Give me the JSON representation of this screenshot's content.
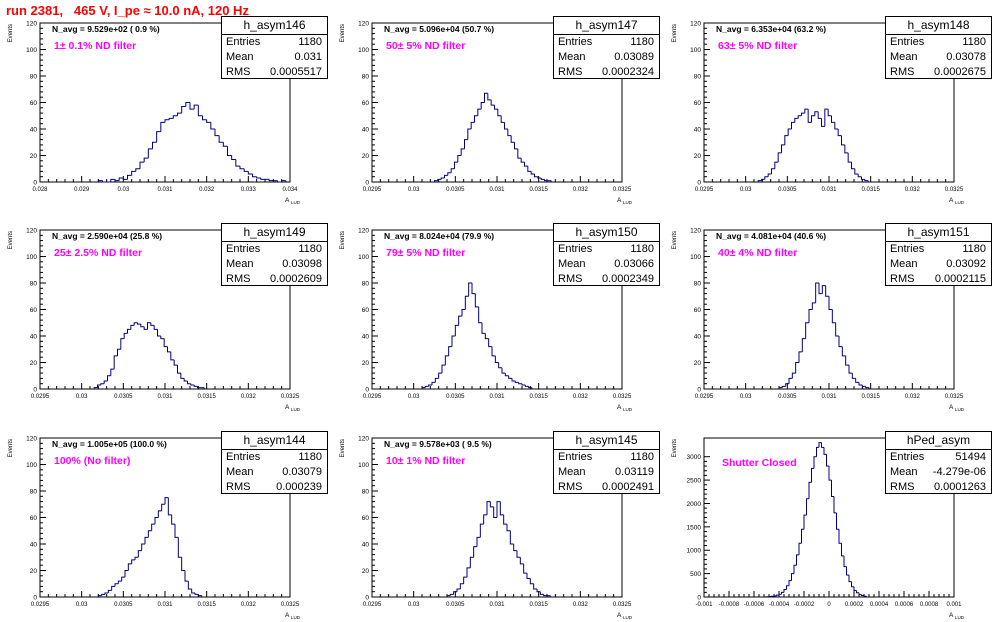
{
  "header": {
    "title": "run 2381,   465 V, I_pe ≈ 10.0 nA, 120 Hz"
  },
  "common": {
    "ylabel": "Events",
    "xlabel": "A",
    "xlabel_sub": "LUD",
    "stats_labels": {
      "entries": "Entries",
      "mean": "Mean",
      "rms": "RMS"
    },
    "hist_color": "#000080",
    "note_color": "#ff00ff"
  },
  "chart_data": [
    {
      "type": "bar",
      "title": "h_asym146",
      "annotation": "N_avg = 9.529e+02 ( 0.9 %)",
      "filter_note": "1± 0.1% ND filter",
      "stats": {
        "entries": "1180",
        "mean": "0.031",
        "rms": "0.0005517"
      },
      "xlim": [
        0.028,
        0.034
      ],
      "ylim": [
        0,
        120
      ],
      "xticks": [
        0.028,
        0.029,
        0.03,
        0.031,
        0.032,
        0.033,
        0.034
      ],
      "xtick_labels": [
        "0.028",
        "0.029",
        "0.03",
        "0.031",
        "0.032",
        "0.033",
        "0.034"
      ],
      "yticks": [
        0,
        20,
        40,
        60,
        80,
        100,
        120
      ],
      "ytick_labels": [
        "0",
        "20",
        "40",
        "60",
        "80",
        "100",
        "120"
      ],
      "bins": {
        "start": 0.0294,
        "width": 0.0001,
        "counts": [
          1,
          0,
          0,
          2,
          1,
          3,
          2,
          5,
          8,
          10,
          15,
          18,
          25,
          30,
          38,
          45,
          47,
          48,
          50,
          52,
          57,
          60,
          55,
          58,
          50,
          47,
          45,
          40,
          35,
          30,
          27,
          20,
          17,
          12,
          10,
          8,
          6,
          4,
          3,
          2,
          2,
          1,
          1,
          0,
          1
        ]
      }
    },
    {
      "type": "bar",
      "title": "h_asym147",
      "annotation": "N_avg = 5.096e+04 (50.7 %)",
      "filter_note": "50± 5% ND filter",
      "stats": {
        "entries": "1180",
        "mean": "0.03089",
        "rms": "0.0002324"
      },
      "xlim": [
        0.0295,
        0.0325
      ],
      "ylim": [
        0,
        120
      ],
      "xticks": [
        0.0295,
        0.03,
        0.0305,
        0.031,
        0.0315,
        0.032,
        0.0325
      ],
      "xtick_labels": [
        "0.0295",
        "0.03",
        "0.0305",
        "0.031",
        "0.0315",
        "0.032",
        "0.0325"
      ],
      "yticks": [
        0,
        20,
        40,
        60,
        80,
        100,
        120
      ],
      "ytick_labels": [
        "0",
        "20",
        "40",
        "60",
        "80",
        "100",
        "120"
      ],
      "bins": {
        "start": 0.03025,
        "width": 4e-05,
        "counts": [
          1,
          2,
          3,
          5,
          7,
          10,
          15,
          20,
          25,
          32,
          40,
          45,
          50,
          55,
          60,
          67,
          62,
          58,
          55,
          50,
          45,
          40,
          35,
          30,
          25,
          18,
          15,
          12,
          8,
          6,
          4,
          3,
          2,
          1,
          1
        ]
      }
    },
    {
      "type": "bar",
      "title": "h_asym148",
      "annotation": "N_avg = 6.353e+04 (63.2 %)",
      "filter_note": "63± 5% ND filter",
      "stats": {
        "entries": "1180",
        "mean": "0.03078",
        "rms": "0.0002675"
      },
      "xlim": [
        0.0295,
        0.0325
      ],
      "ylim": [
        0,
        120
      ],
      "xticks": [
        0.0295,
        0.03,
        0.0305,
        0.031,
        0.0315,
        0.032,
        0.0325
      ],
      "xtick_labels": [
        "0.0295",
        "0.03",
        "0.0305",
        "0.031",
        "0.0315",
        "0.032",
        "0.0325"
      ],
      "yticks": [
        0,
        20,
        40,
        60,
        80,
        100,
        120
      ],
      "ytick_labels": [
        "0",
        "20",
        "40",
        "60",
        "80",
        "100",
        "120"
      ],
      "bins": {
        "start": 0.03015,
        "width": 4e-05,
        "counts": [
          1,
          2,
          4,
          6,
          10,
          15,
          22,
          28,
          35,
          40,
          45,
          48,
          50,
          52,
          55,
          45,
          50,
          53,
          48,
          42,
          55,
          50,
          45,
          40,
          35,
          28,
          22,
          15,
          10,
          6,
          4,
          2,
          1
        ]
      }
    },
    {
      "type": "bar",
      "title": "h_asym149",
      "annotation": "N_avg = 2.590e+04 (25.8 %)",
      "filter_note": "25± 2.5% ND filter",
      "stats": {
        "entries": "1180",
        "mean": "0.03098",
        "rms": "0.0002609"
      },
      "xlim": [
        0.0295,
        0.0325
      ],
      "ylim": [
        0,
        120
      ],
      "xticks": [
        0.0295,
        0.03,
        0.0305,
        0.031,
        0.0315,
        0.032,
        0.0325
      ],
      "xtick_labels": [
        "0.0295",
        "0.03",
        "0.0305",
        "0.031",
        "0.0315",
        "0.032",
        "0.0325"
      ],
      "yticks": [
        0,
        20,
        40,
        60,
        80,
        100,
        120
      ],
      "ytick_labels": [
        "0",
        "20",
        "40",
        "60",
        "80",
        "100",
        "120"
      ],
      "bins": {
        "start": 0.03015,
        "width": 4e-05,
        "counts": [
          1,
          3,
          4,
          6,
          10,
          15,
          25,
          30,
          38,
          42,
          45,
          48,
          50,
          49,
          47,
          45,
          50,
          48,
          45,
          40,
          38,
          32,
          28,
          22,
          18,
          12,
          8,
          6,
          4,
          3,
          2,
          1,
          1
        ]
      }
    },
    {
      "type": "bar",
      "title": "h_asym150",
      "annotation": "N_avg = 8.024e+04 (79.9 %)",
      "filter_note": "79± 5% ND filter",
      "stats": {
        "entries": "1180",
        "mean": "0.03066",
        "rms": "0.0002349"
      },
      "xlim": [
        0.0295,
        0.0325
      ],
      "ylim": [
        0,
        120
      ],
      "xticks": [
        0.0295,
        0.03,
        0.0305,
        0.031,
        0.0315,
        0.032,
        0.0325
      ],
      "xtick_labels": [
        "0.0295",
        "0.03",
        "0.0305",
        "0.031",
        "0.0315",
        "0.032",
        "0.0325"
      ],
      "yticks": [
        0,
        20,
        40,
        60,
        80,
        100,
        120
      ],
      "ytick_labels": [
        "0",
        "20",
        "40",
        "60",
        "80",
        "100",
        "120"
      ],
      "bins": {
        "start": 0.0301,
        "width": 4e-05,
        "counts": [
          1,
          2,
          3,
          5,
          8,
          12,
          18,
          25,
          32,
          40,
          48,
          55,
          60,
          70,
          80,
          72,
          62,
          50,
          42,
          38,
          32,
          25,
          20,
          16,
          12,
          10,
          8,
          6,
          5,
          4,
          3,
          2,
          1
        ]
      }
    },
    {
      "type": "bar",
      "title": "h_asym151",
      "annotation": "N_avg = 4.081e+04 (40.6 %)",
      "filter_note": "40± 4% ND filter",
      "stats": {
        "entries": "1180",
        "mean": "0.03092",
        "rms": "0.0002115"
      },
      "xlim": [
        0.0295,
        0.0325
      ],
      "ylim": [
        0,
        120
      ],
      "xticks": [
        0.0295,
        0.03,
        0.0305,
        0.031,
        0.0315,
        0.032,
        0.0325
      ],
      "xtick_labels": [
        "0.0295",
        "0.03",
        "0.0305",
        "0.031",
        "0.0315",
        "0.032",
        "0.0325"
      ],
      "yticks": [
        0,
        20,
        40,
        60,
        80,
        100,
        120
      ],
      "ytick_labels": [
        "0",
        "20",
        "40",
        "60",
        "80",
        "100",
        "120"
      ],
      "bins": {
        "start": 0.0304,
        "width": 4e-05,
        "counts": [
          1,
          2,
          4,
          8,
          12,
          20,
          28,
          38,
          50,
          60,
          65,
          80,
          72,
          78,
          70,
          60,
          50,
          40,
          32,
          25,
          18,
          12,
          8,
          5,
          3,
          2,
          1
        ]
      }
    },
    {
      "type": "bar",
      "title": "h_asym144",
      "annotation": "N_avg = 1.005e+05 (100.0 %)",
      "filter_note": "100% (No filter)",
      "stats": {
        "entries": "1180",
        "mean": "0.03079",
        "rms": "0.000239"
      },
      "xlim": [
        0.0295,
        0.0325
      ],
      "ylim": [
        0,
        120
      ],
      "xticks": [
        0.0295,
        0.03,
        0.0305,
        0.031,
        0.0315,
        0.032,
        0.0325
      ],
      "xtick_labels": [
        "0.0295",
        "0.03",
        "0.0305",
        "0.031",
        "0.0315",
        "0.032",
        "0.0325"
      ],
      "yticks": [
        0,
        20,
        40,
        60,
        80,
        100,
        120
      ],
      "ytick_labels": [
        "0",
        "20",
        "40",
        "60",
        "80",
        "100",
        "120"
      ],
      "bins": {
        "start": 0.0302,
        "width": 4e-05,
        "counts": [
          1,
          2,
          3,
          5,
          8,
          10,
          12,
          15,
          20,
          25,
          28,
          30,
          35,
          40,
          45,
          50,
          55,
          60,
          65,
          70,
          75,
          62,
          55,
          45,
          30,
          20,
          12,
          6,
          3,
          2,
          1
        ]
      }
    },
    {
      "type": "bar",
      "title": "h_asym145",
      "annotation": "N_avg = 9.578e+03 ( 9.5 %)",
      "filter_note": "10± 1% ND filter",
      "stats": {
        "entries": "1180",
        "mean": "0.03119",
        "rms": "0.0002491"
      },
      "xlim": [
        0.0295,
        0.0325
      ],
      "ylim": [
        0,
        120
      ],
      "xticks": [
        0.0295,
        0.03,
        0.0305,
        0.031,
        0.0315,
        0.032,
        0.0325
      ],
      "xtick_labels": [
        "0.0295",
        "0.03",
        "0.0305",
        "0.031",
        "0.0315",
        "0.032",
        "0.0325"
      ],
      "yticks": [
        0,
        20,
        40,
        60,
        80,
        100,
        120
      ],
      "ytick_labels": [
        "0",
        "20",
        "40",
        "60",
        "80",
        "100",
        "120"
      ],
      "bins": {
        "start": 0.0304,
        "width": 4e-05,
        "counts": [
          1,
          2,
          4,
          6,
          10,
          15,
          22,
          30,
          38,
          45,
          55,
          62,
          72,
          68,
          60,
          72,
          62,
          55,
          50,
          40,
          35,
          30,
          25,
          18,
          14,
          10,
          6,
          4,
          2,
          1,
          1
        ]
      }
    },
    {
      "type": "bar",
      "title": "hPed_asym",
      "annotation": "",
      "filter_note": "Shutter Closed",
      "stats": {
        "entries": "51494",
        "mean": "-4.279e-06",
        "rms": "0.0001263"
      },
      "xlim": [
        -0.001,
        0.001
      ],
      "ylim": [
        0,
        3400
      ],
      "xticks": [
        -0.001,
        -0.0008,
        -0.0006,
        -0.0004,
        -0.0002,
        0,
        0.0002,
        0.0004,
        0.0006,
        0.0008,
        0.001
      ],
      "xtick_labels": [
        "-0.001",
        "-0.0008",
        "-0.0006",
        "-0.0004",
        "-0.0002",
        "0",
        "0.0002",
        "0.0004",
        "0.0006",
        "0.0008",
        "0.001"
      ],
      "yticks": [
        0,
        500,
        1000,
        1500,
        2000,
        2500,
        3000
      ],
      "ytick_labels": [
        "0",
        "500",
        "1000",
        "1500",
        "2000",
        "2500",
        "3000"
      ],
      "bins": {
        "start": -0.0005,
        "width": 2e-05,
        "counts": [
          5,
          10,
          15,
          25,
          40,
          60,
          100,
          160,
          240,
          350,
          500,
          680,
          900,
          1150,
          1450,
          1750,
          2100,
          2450,
          2750,
          3000,
          3200,
          3300,
          3200,
          3050,
          2800,
          2500,
          2150,
          1800,
          1450,
          1150,
          880,
          650,
          470,
          330,
          220,
          140,
          90,
          50,
          30,
          15
        ]
      }
    }
  ]
}
